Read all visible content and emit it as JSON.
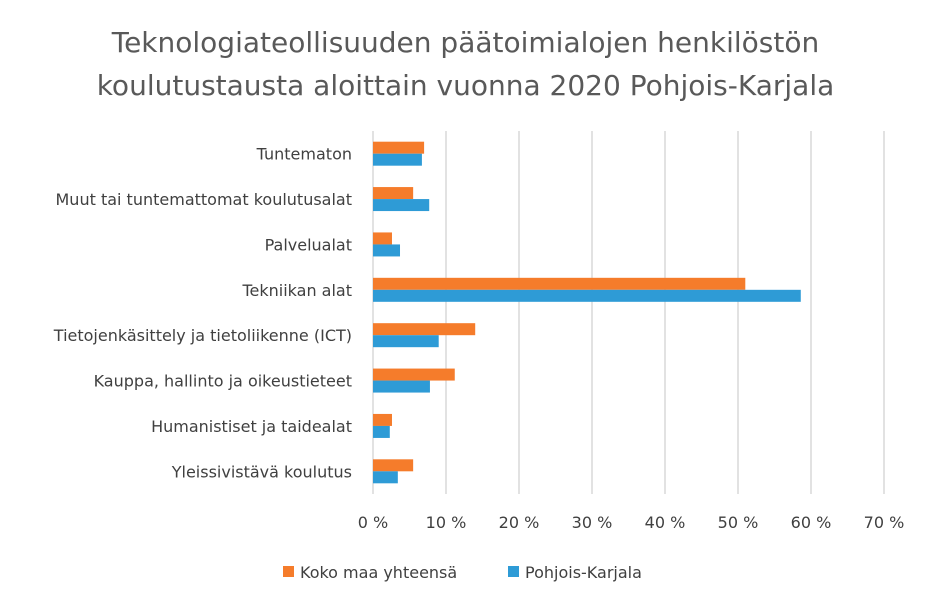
{
  "chart_data": {
    "type": "bar",
    "orientation": "horizontal",
    "title_lines": [
      "Teknologiateollisuuden päätoimialojen henkilöstön",
      "koulutustausta aloittain vuonna 2020 Pohjois-Karjala"
    ],
    "categories": [
      "Tuntematon",
      "Muut tai tuntemattomat koulutusalat",
      "Palvelualat",
      "Tekniikan alat",
      "Tietojenkäsittely ja tietoliikenne (ICT)",
      "Kauppa, hallinto ja oikeustieteet",
      "Humanistiset ja taidealat",
      "Yleissivistävä koulutus"
    ],
    "series": [
      {
        "name": "Koko maa yhteensä",
        "color": "#f57c2b",
        "values": [
          7.0,
          5.5,
          2.6,
          51.0,
          14.0,
          11.2,
          2.6,
          5.5
        ]
      },
      {
        "name": "Pohjois-Karjala",
        "color": "#2e9bd6",
        "values": [
          6.7,
          7.7,
          3.7,
          58.6,
          9.0,
          7.8,
          2.3,
          3.4
        ]
      }
    ],
    "xlim": [
      0,
      70
    ],
    "x_ticks": [
      0,
      10,
      20,
      30,
      40,
      50,
      60,
      70
    ],
    "x_tick_labels": [
      "0 %",
      "10 %",
      "20 %",
      "30 %",
      "40 %",
      "50 %",
      "60 %",
      "70 %"
    ],
    "grid": true,
    "legend_position": "bottom"
  }
}
